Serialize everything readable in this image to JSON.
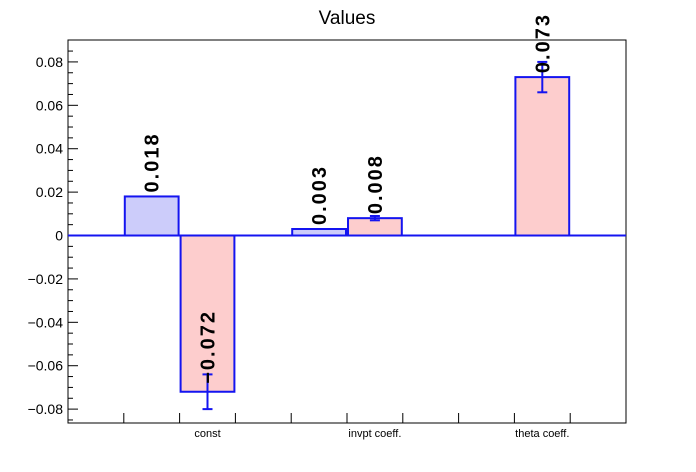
{
  "chart_data": {
    "type": "bar",
    "title": "Values",
    "xlabel": "",
    "ylabel": "",
    "ylim": [
      -0.0864,
      0.0901
    ],
    "n_bins": 10,
    "grid": false,
    "legend": false,
    "y_major_ticks": [
      {
        "v": -0.08,
        "label": "−0.08"
      },
      {
        "v": -0.06,
        "label": "−0.06"
      },
      {
        "v": -0.04,
        "label": "−0.04"
      },
      {
        "v": -0.02,
        "label": "−0.02"
      },
      {
        "v": 0,
        "label": "0"
      },
      {
        "v": 0.02,
        "label": "0.02"
      },
      {
        "v": 0.04,
        "label": "0.04"
      },
      {
        "v": 0.06,
        "label": "0.06"
      },
      {
        "v": 0.08,
        "label": "0.08"
      }
    ],
    "y_minor_step": 0.005,
    "categories": [
      "const",
      "invpt coeff.",
      "theta coeff."
    ],
    "bars": [
      {
        "bin": 2,
        "value": 0.018,
        "label": "0.018",
        "error": null,
        "color": "blue"
      },
      {
        "bin": 3,
        "value": -0.072,
        "label": "−0.072",
        "error": 0.008,
        "color": "pink"
      },
      {
        "bin": 5,
        "value": 0.003,
        "label": "0.003",
        "error": null,
        "color": "blue"
      },
      {
        "bin": 6,
        "value": 0.008,
        "label": "0.008",
        "error": 0.001,
        "color": "pink"
      },
      {
        "bin": 9,
        "value": 0.073,
        "label": "0.073",
        "error": 0.007,
        "color": "pink"
      }
    ],
    "x_bin_labels": [
      {
        "bin": 3,
        "text": "const"
      },
      {
        "bin": 6,
        "text": "invpt coeff."
      },
      {
        "bin": 9,
        "text": "theta coeff."
      }
    ],
    "colors": {
      "fill_blue": "#ccccfa",
      "fill_pink": "#fdcdcd",
      "bar_outline": "#1414f0",
      "zero_line": "#1414f0",
      "error_bar": "#1414f0",
      "axis": "#000000",
      "text": "#000000"
    }
  }
}
